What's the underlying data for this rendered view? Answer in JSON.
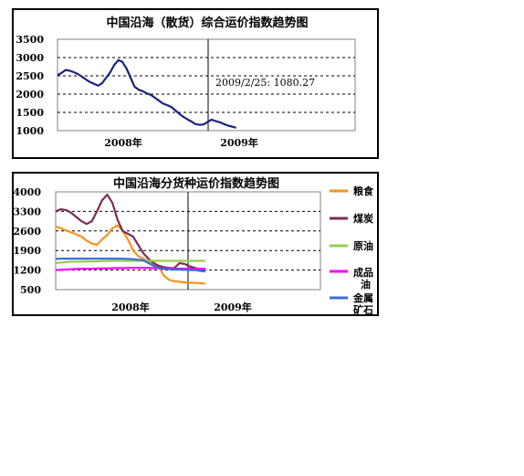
{
  "chart_data": [
    {
      "type": "line",
      "title": "中国沿海（散货）综合运价指数趋势图",
      "ylim": [
        1000,
        3500
      ],
      "yticks": [
        1000,
        1500,
        2000,
        2500,
        3000,
        3500
      ],
      "x_tick_labels": [
        "2008年",
        "2009年"
      ],
      "annotation": "2009/2/25: 1080.27",
      "grid": true,
      "legend": "none",
      "colors": {
        "series": "#1a237e"
      },
      "series": [
        {
          "values": [
            2520,
            2580,
            2660,
            2640,
            2600,
            2550,
            2480,
            2400,
            2330,
            2280,
            2230,
            2300,
            2450,
            2600,
            2800,
            2930,
            2880,
            2700,
            2450,
            2200,
            2120,
            2080,
            2020,
            1980,
            1900,
            1820,
            1740,
            1700,
            1650,
            1560,
            1460,
            1380,
            1310,
            1250,
            1180,
            1160,
            1170,
            1240,
            1300,
            1260,
            1230,
            1180,
            1140,
            1110,
            1080
          ]
        }
      ]
    },
    {
      "type": "line",
      "title": "中国沿海分货种运价指数趋势图",
      "ylim": [
        500,
        4000
      ],
      "yticks": [
        500,
        1200,
        1900,
        2600,
        3300,
        4000
      ],
      "x_tick_labels": [
        "2008年",
        "2009年"
      ],
      "grid": true,
      "legend": "right",
      "series": [
        {
          "name": "粮食",
          "color": "#f7941d",
          "values": [
            2750,
            2700,
            2620,
            2550,
            2480,
            2400,
            2250,
            2150,
            2100,
            2300,
            2450,
            2700,
            2800,
            2600,
            2300,
            1900,
            1700,
            1600,
            1500,
            1400,
            1300,
            1000,
            850,
            800,
            780,
            760,
            750,
            740,
            730,
            720
          ]
        },
        {
          "name": "煤炭",
          "color": "#7b2c54",
          "values": [
            3300,
            3380,
            3350,
            3250,
            3100,
            2950,
            2850,
            2950,
            3300,
            3700,
            3900,
            3600,
            3000,
            2600,
            2500,
            2400,
            2100,
            1800,
            1600,
            1450,
            1350,
            1300,
            1280,
            1270,
            1450,
            1420,
            1330,
            1280,
            1230,
            1200
          ]
        },
        {
          "name": "原油",
          "color": "#92d050",
          "values": [
            1450,
            1470,
            1480,
            1500,
            1500,
            1500,
            1510,
            1510,
            1510,
            1520,
            1520,
            1530,
            1530,
            1530,
            1530,
            1530,
            1530,
            1530,
            1530,
            1530,
            1530,
            1530,
            1530,
            1530,
            1530,
            1530,
            1530,
            1530,
            1530,
            1530
          ]
        },
        {
          "name": "成品油",
          "color": "#ff00ff",
          "values": [
            1200,
            1210,
            1220,
            1230,
            1240,
            1250,
            1250,
            1250,
            1260,
            1260,
            1260,
            1270,
            1270,
            1270,
            1280,
            1280,
            1280,
            1280,
            1280,
            1270,
            1270,
            1260,
            1260,
            1250,
            1250,
            1250,
            1250,
            1250,
            1250,
            1250
          ]
        },
        {
          "name": "金属矿石",
          "color": "#3a6fd8",
          "values": [
            1600,
            1610,
            1610,
            1610,
            1610,
            1610,
            1610,
            1610,
            1610,
            1610,
            1610,
            1610,
            1610,
            1610,
            1600,
            1590,
            1570,
            1550,
            1450,
            1350,
            1270,
            1240,
            1230,
            1220,
            1220,
            1210,
            1200,
            1200,
            1170,
            1150
          ]
        }
      ]
    }
  ]
}
